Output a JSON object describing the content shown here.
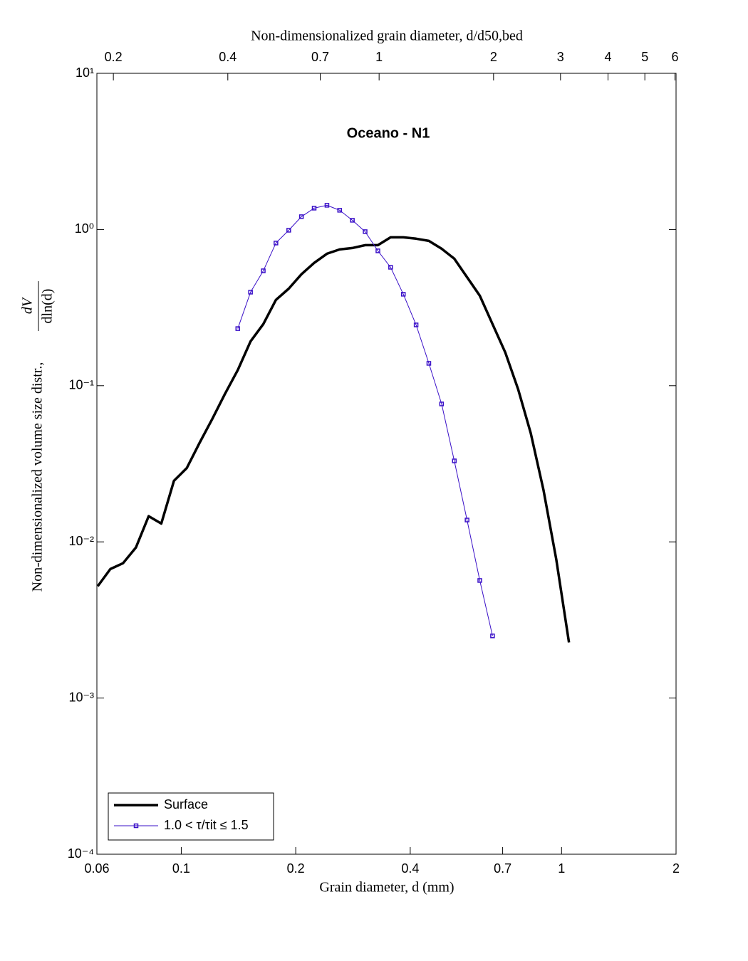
{
  "chart_data": {
    "type": "line",
    "title": "Oceano - N1",
    "xlabel": "Grain diameter, d (mm)",
    "x2label": "Non-dimensionalized grain diameter, d/d50,bed",
    "ylabel": "Non-dimensionalized volume size distr.,",
    "ylabel_fraction": {
      "numerator": "dV",
      "denominator": "dln(d)"
    },
    "xscale": "log",
    "yscale": "log",
    "xlim": [
      0.06,
      2
    ],
    "xticks": [
      0.06,
      0.1,
      0.2,
      0.4,
      0.7,
      1,
      2
    ],
    "x2lim": [
      0.181,
      6.04
    ],
    "x2ticks": [
      0.2,
      0.4,
      0.7,
      1,
      2,
      3,
      4,
      5,
      6
    ],
    "ylim": [
      0.0001,
      10
    ],
    "yticks": [
      {
        "value": 0.0001,
        "label": "10⁻⁴"
      },
      {
        "value": 0.001,
        "label": "10⁻³"
      },
      {
        "value": 0.01,
        "label": "10⁻²"
      },
      {
        "value": 0.1,
        "label": "10⁻¹"
      },
      {
        "value": 1,
        "label": "10⁰"
      },
      {
        "value": 10,
        "label": "10¹"
      }
    ],
    "legend": "lower left",
    "series": [
      {
        "name": "Surface",
        "color": "#000000",
        "marker": "none",
        "x": [
          0.0603,
          0.0651,
          0.0703,
          0.076,
          0.0821,
          0.0886,
          0.0957,
          0.1034,
          0.1117,
          0.1207,
          0.1303,
          0.1408,
          0.1521,
          0.1643,
          0.1774,
          0.1917,
          0.207,
          0.2236,
          0.2416,
          0.2609,
          0.2818,
          0.3044,
          0.3289,
          0.3552,
          0.3837,
          0.4145,
          0.4477,
          0.4836,
          0.5224,
          0.5643,
          0.6095,
          0.6584,
          0.7112,
          0.7682,
          0.8298,
          0.8964,
          0.9685,
          1.046
        ],
        "values": [
          0.0052,
          0.0067,
          0.0073,
          0.0092,
          0.0146,
          0.0131,
          0.0246,
          0.0297,
          0.043,
          0.0614,
          0.0886,
          0.126,
          0.192,
          0.248,
          0.354,
          0.418,
          0.517,
          0.611,
          0.7,
          0.745,
          0.761,
          0.794,
          0.794,
          0.891,
          0.891,
          0.873,
          0.845,
          0.753,
          0.65,
          0.495,
          0.377,
          0.248,
          0.163,
          0.0953,
          0.0497,
          0.0215,
          0.0077,
          0.00227
        ]
      },
      {
        "name": "1.0 < τ/τit ≤ 1.5",
        "color": "#3a10c8",
        "marker": "square",
        "x": [
          0.1408,
          0.1521,
          0.1643,
          0.1774,
          0.1917,
          0.207,
          0.2236,
          0.2416,
          0.2609,
          0.2818,
          0.3044,
          0.3289,
          0.3552,
          0.3837,
          0.4145,
          0.4477,
          0.4836,
          0.5224,
          0.5643,
          0.6095,
          0.6584
        ],
        "values": [
          0.232,
          0.397,
          0.544,
          0.819,
          0.989,
          1.208,
          1.37,
          1.429,
          1.328,
          1.146,
          0.969,
          0.73,
          0.573,
          0.385,
          0.245,
          0.139,
          0.0764,
          0.033,
          0.0138,
          0.00566,
          0.0025
        ]
      }
    ]
  }
}
